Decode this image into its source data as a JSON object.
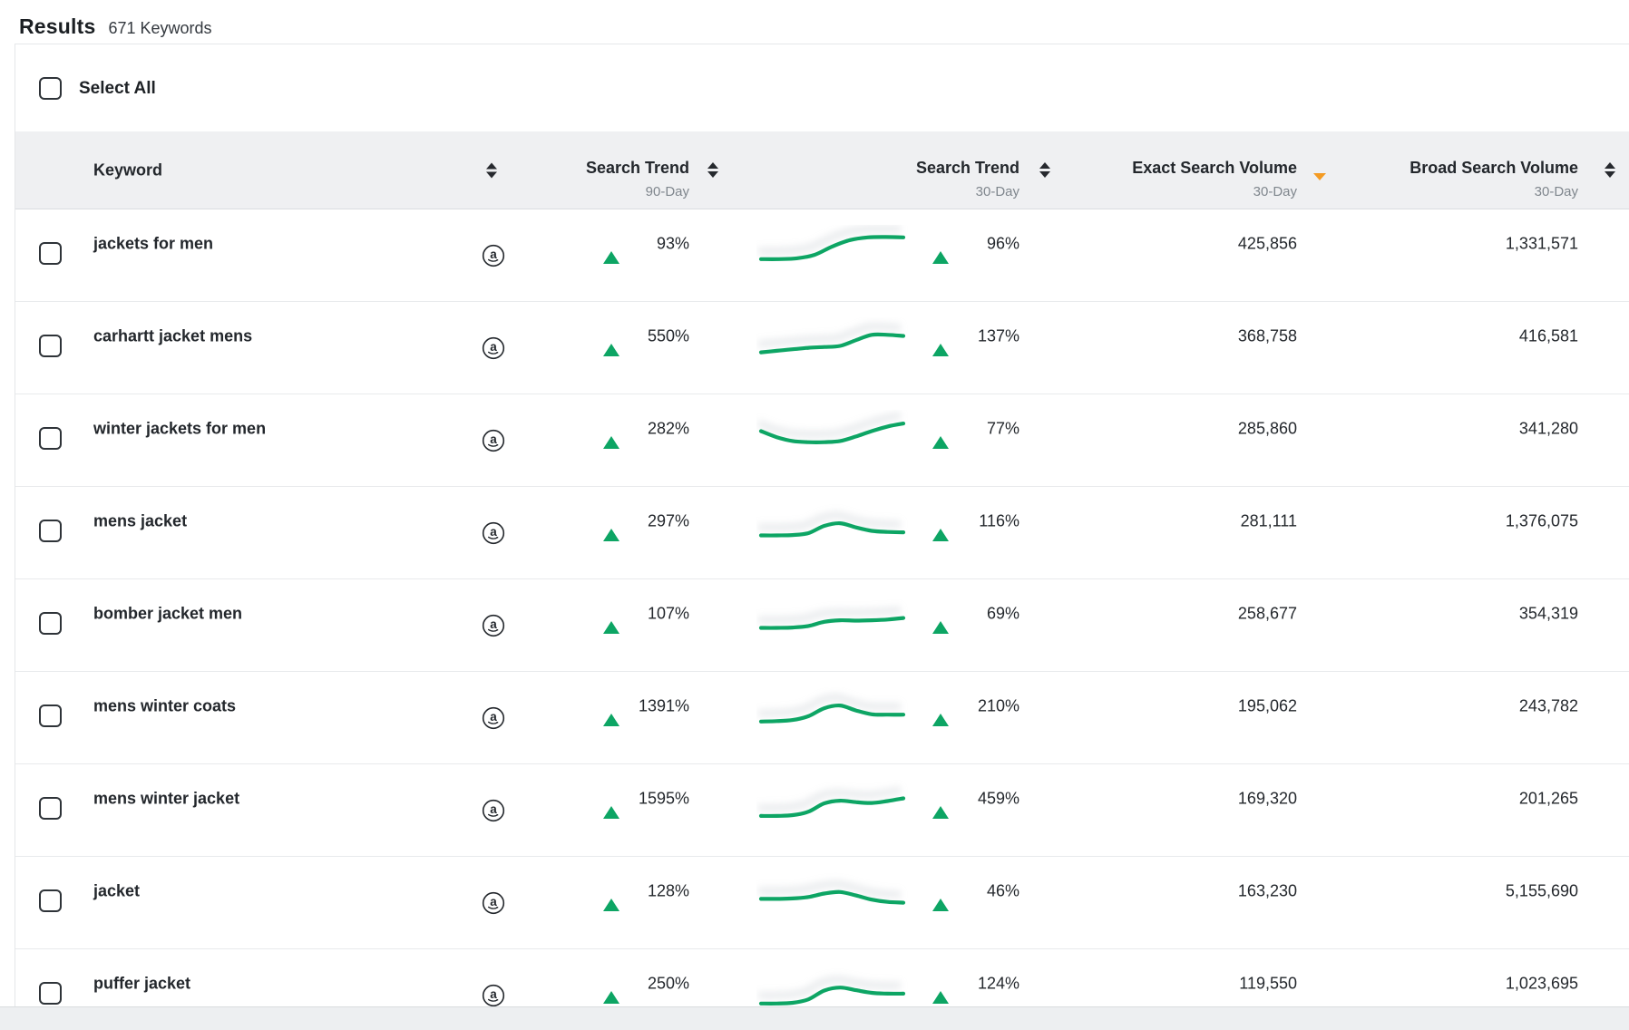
{
  "title": {
    "label": "Results",
    "count": "671 Keywords"
  },
  "select_all": {
    "label": "Select All"
  },
  "colors": {
    "green": "#0da564",
    "orange": "#f49b23",
    "header_bg": "#eff0f2",
    "row_border": "#e8eaec"
  },
  "icons": {
    "amazon": "amazon-circle-a-icon",
    "sort": "sort-updown-icon",
    "sort_desc_active": "sort-desc-orange-icon",
    "trend_up": "triangle-up-icon"
  },
  "columns": [
    {
      "id": "keyword",
      "label": "Keyword",
      "sublabel": "",
      "sort": "sortable"
    },
    {
      "id": "search-trend-90",
      "label": "Search Trend",
      "sublabel": "90-Day",
      "sort": "sortable"
    },
    {
      "id": "search-trend-30",
      "label": "Search Trend",
      "sublabel": "30-Day",
      "sort": "sortable"
    },
    {
      "id": "exact-search-volume",
      "label": "Exact Search Volume",
      "sublabel": "30-Day",
      "sort": "sorted-desc"
    },
    {
      "id": "broad-search-volume",
      "label": "Broad Search Volume",
      "sublabel": "30-Day",
      "sort": "sortable"
    }
  ],
  "rows": [
    {
      "keyword": "jackets for men",
      "trend_90": "93%",
      "trend_30": "96%",
      "exact_volume": "425,856",
      "broad_volume": "1,331,571",
      "spark": [
        0.22,
        0.22,
        0.24,
        0.33,
        0.55,
        0.72,
        0.79,
        0.8,
        0.79
      ]
    },
    {
      "keyword": "carhartt jacket mens",
      "trend_90": "550%",
      "trend_30": "137%",
      "exact_volume": "368,758",
      "broad_volume": "416,581",
      "spark": [
        0.2,
        0.24,
        0.28,
        0.32,
        0.34,
        0.37,
        0.52,
        0.66,
        0.66,
        0.63
      ]
    },
    {
      "keyword": "winter jackets for men",
      "trend_90": "282%",
      "trend_30": "77%",
      "exact_volume": "285,860",
      "broad_volume": "341,280",
      "spark": [
        0.56,
        0.4,
        0.3,
        0.27,
        0.27,
        0.3,
        0.42,
        0.56,
        0.68,
        0.76
      ]
    },
    {
      "keyword": "mens jacket",
      "trend_90": "297%",
      "trend_30": "116%",
      "exact_volume": "281,111",
      "broad_volume": "1,376,075",
      "spark": [
        0.25,
        0.25,
        0.26,
        0.31,
        0.5,
        0.57,
        0.46,
        0.37,
        0.34,
        0.33
      ]
    },
    {
      "keyword": "bomber jacket men",
      "trend_90": "107%",
      "trend_30": "69%",
      "exact_volume": "258,677",
      "broad_volume": "354,319",
      "spark": [
        0.25,
        0.25,
        0.26,
        0.3,
        0.41,
        0.45,
        0.44,
        0.45,
        0.47,
        0.51
      ]
    },
    {
      "keyword": "mens winter coats",
      "trend_90": "1391%",
      "trend_30": "210%",
      "exact_volume": "195,062",
      "broad_volume": "243,782",
      "spark": [
        0.22,
        0.23,
        0.26,
        0.36,
        0.57,
        0.64,
        0.51,
        0.41,
        0.4,
        0.4
      ]
    },
    {
      "keyword": "mens winter jacket",
      "trend_90": "1595%",
      "trend_30": "459%",
      "exact_volume": "169,320",
      "broad_volume": "201,265",
      "spark": [
        0.17,
        0.17,
        0.19,
        0.28,
        0.5,
        0.57,
        0.53,
        0.51,
        0.56,
        0.63
      ]
    },
    {
      "keyword": "jacket",
      "trend_90": "128%",
      "trend_30": "46%",
      "exact_volume": "163,230",
      "broad_volume": "5,155,690",
      "spark": [
        0.42,
        0.42,
        0.43,
        0.47,
        0.56,
        0.6,
        0.51,
        0.4,
        0.34,
        0.32
      ]
    },
    {
      "keyword": "puffer jacket",
      "trend_90": "250%",
      "trend_30": "124%",
      "exact_volume": "119,550",
      "broad_volume": "1,023,695",
      "spark": [
        0.1,
        0.1,
        0.12,
        0.21,
        0.44,
        0.52,
        0.45,
        0.38,
        0.36,
        0.36
      ]
    }
  ]
}
